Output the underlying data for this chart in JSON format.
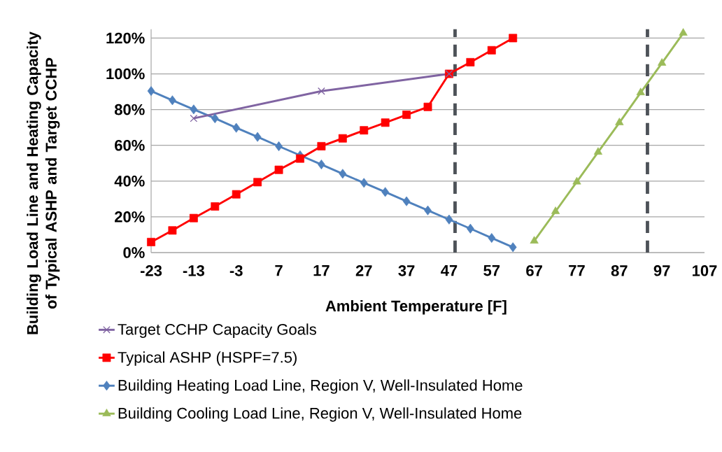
{
  "chart_data": {
    "type": "line",
    "xlabel": "Ambient Temperature [F]",
    "ylabel": "Building Load Line and Heating Capacity of Typical ASHP and Target CCHP",
    "xlim": [
      -23,
      107
    ],
    "xticks": [
      -23,
      -13,
      -3,
      7,
      17,
      27,
      37,
      47,
      57,
      67,
      77,
      87,
      97,
      107
    ],
    "ylim": [
      0,
      1.25
    ],
    "yticks": [
      {
        "value": 0,
        "label": "0%"
      },
      {
        "value": 0.2,
        "label": "20%"
      },
      {
        "value": 0.4,
        "label": "40%"
      },
      {
        "value": 0.6,
        "label": "60%"
      },
      {
        "value": 0.8,
        "label": "80%"
      },
      {
        "value": 1.0,
        "label": "100%"
      },
      {
        "value": 1.2,
        "label": "120%"
      }
    ],
    "grid": "y",
    "legend": "bottom",
    "ref_lines": [
      {
        "axis": "x",
        "value": 48.4,
        "color": "#4d5258",
        "line_style": "dashed"
      },
      {
        "axis": "x",
        "value": 93.6,
        "color": "#4d5258",
        "line_style": "dashed"
      }
    ],
    "series": [
      {
        "name": "Target CCHP Capacity Goals",
        "color": "#8064a2",
        "marker": "cross",
        "x": [
          -13,
          17,
          47
        ],
        "values": [
          0.751,
          0.903,
          1.0
        ]
      },
      {
        "name": "Typical ASHP (HSPF=7.5)",
        "color": "#ff0000",
        "marker": "square",
        "x": [
          -23,
          -18,
          -13,
          -8,
          -3,
          2,
          7,
          12,
          17,
          22,
          27,
          32,
          37,
          42,
          47,
          52,
          57,
          62
        ],
        "values": [
          0.059,
          0.124,
          0.193,
          0.258,
          0.326,
          0.394,
          0.463,
          0.526,
          0.595,
          0.639,
          0.684,
          0.727,
          0.771,
          0.815,
          1.0,
          1.065,
          1.132,
          1.2
        ]
      },
      {
        "name": "Building Heating Load Line, Region V, Well-Insulated Home",
        "color": "#4f81bd",
        "marker": "diamond",
        "x": [
          -23,
          -18,
          -13,
          -8,
          -3,
          2,
          7,
          12,
          17,
          22,
          27,
          32,
          37,
          42,
          47,
          52,
          57,
          62
        ],
        "values": [
          0.904,
          0.852,
          0.801,
          0.751,
          0.698,
          0.647,
          0.595,
          0.544,
          0.493,
          0.441,
          0.39,
          0.339,
          0.287,
          0.236,
          0.185,
          0.134,
          0.082,
          0.03
        ]
      },
      {
        "name": "Building Cooling Load Line, Region V, Well-Insulated Home",
        "color": "#9bbb59",
        "marker": "triangle",
        "x": [
          67,
          72,
          77,
          82,
          87,
          92,
          97,
          102
        ],
        "values": [
          0.065,
          0.23,
          0.396,
          0.562,
          0.727,
          0.895,
          1.06,
          1.228
        ]
      }
    ]
  }
}
